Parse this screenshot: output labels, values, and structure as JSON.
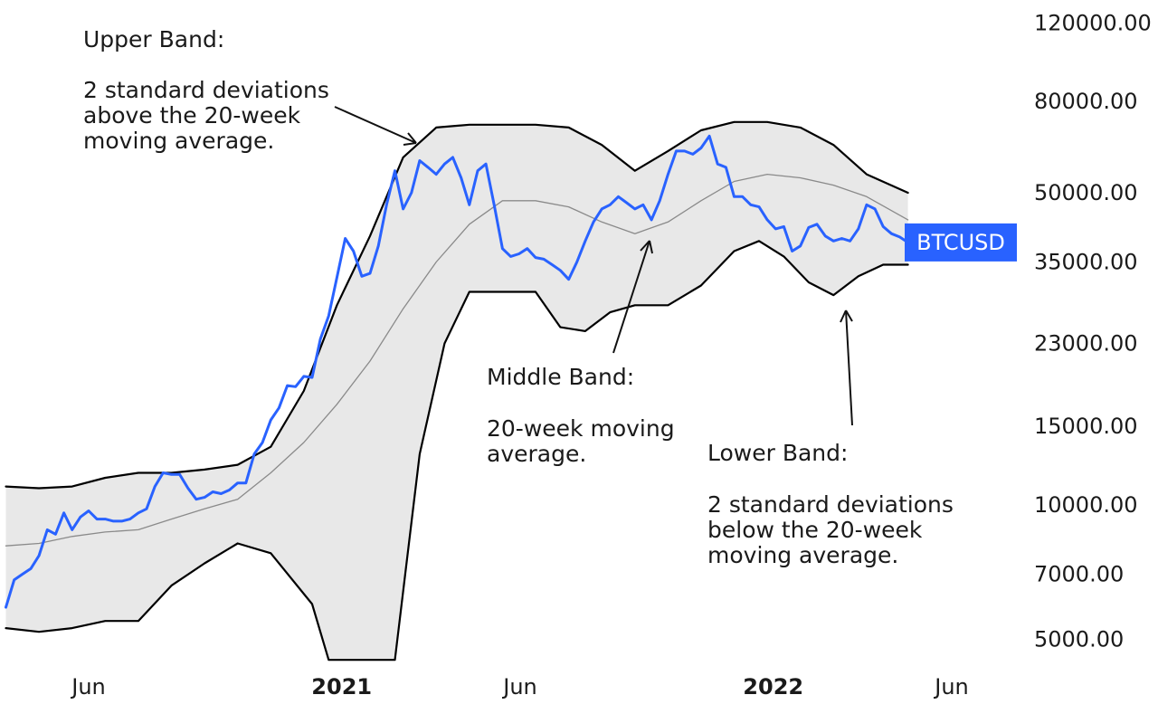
{
  "chart_data": {
    "type": "line",
    "y_scale": "log",
    "ylim": [
      4800,
      125000
    ],
    "x_ticks": [
      {
        "label": "Jun",
        "x": "2020-06-01",
        "major": false
      },
      {
        "label": "2021",
        "x": "2021-01-01",
        "major": true
      },
      {
        "label": "Jun",
        "x": "2021-06-01",
        "major": false
      },
      {
        "label": "2022",
        "x": "2022-01-01",
        "major": true
      },
      {
        "label": "Jun",
        "x": "2022-06-01",
        "major": false
      }
    ],
    "y_ticks": [
      {
        "label": "120000.00",
        "value": 120000
      },
      {
        "label": "80000.00",
        "value": 80000
      },
      {
        "label": "50000.00",
        "value": 50000
      },
      {
        "label": "35000.00",
        "value": 35000
      },
      {
        "label": "23000.00",
        "value": 23000
      },
      {
        "label": "15000.00",
        "value": 15000
      },
      {
        "label": "10000.00",
        "value": 10000
      },
      {
        "label": "7000.00",
        "value": 7000
      },
      {
        "label": "5000.00",
        "value": 5000
      }
    ],
    "series": [
      {
        "name": "BTCUSD",
        "color": "#2962ff",
        "x": [
          "2020-03-23",
          "2020-03-30",
          "2020-04-06",
          "2020-04-13",
          "2020-04-20",
          "2020-04-27",
          "2020-05-04",
          "2020-05-11",
          "2020-05-18",
          "2020-05-25",
          "2020-06-01",
          "2020-06-08",
          "2020-06-15",
          "2020-06-22",
          "2020-06-29",
          "2020-07-06",
          "2020-07-13",
          "2020-07-20",
          "2020-07-27",
          "2020-08-03",
          "2020-08-10",
          "2020-08-17",
          "2020-08-24",
          "2020-08-31",
          "2020-09-07",
          "2020-09-14",
          "2020-09-21",
          "2020-09-28",
          "2020-10-05",
          "2020-10-12",
          "2020-10-19",
          "2020-10-26",
          "2020-11-02",
          "2020-11-09",
          "2020-11-16",
          "2020-11-23",
          "2020-11-30",
          "2020-12-07",
          "2020-12-14",
          "2020-12-21",
          "2020-12-28",
          "2021-01-04",
          "2021-01-11",
          "2021-01-18",
          "2021-01-25",
          "2021-02-01",
          "2021-02-08",
          "2021-02-15",
          "2021-02-22",
          "2021-03-01",
          "2021-03-08",
          "2021-03-15",
          "2021-03-22",
          "2021-03-29",
          "2021-04-05",
          "2021-04-12",
          "2021-04-19",
          "2021-04-26",
          "2021-05-03",
          "2021-05-10",
          "2021-05-17",
          "2021-05-24",
          "2021-05-31",
          "2021-06-07",
          "2021-06-14",
          "2021-06-21",
          "2021-06-28",
          "2021-07-05",
          "2021-07-12",
          "2021-07-19",
          "2021-07-26",
          "2021-08-02",
          "2021-08-09",
          "2021-08-16",
          "2021-08-23",
          "2021-08-30",
          "2021-09-06",
          "2021-09-13",
          "2021-09-20",
          "2021-09-27",
          "2021-10-04",
          "2021-10-11",
          "2021-10-18",
          "2021-10-25",
          "2021-11-01",
          "2021-11-08",
          "2021-11-15",
          "2021-11-22",
          "2021-11-29",
          "2021-12-06",
          "2021-12-13",
          "2021-12-20",
          "2021-12-27",
          "2022-01-03",
          "2022-01-10",
          "2022-01-17",
          "2022-01-24",
          "2022-01-31",
          "2022-02-07",
          "2022-02-14",
          "2022-02-21",
          "2022-02-28",
          "2022-03-07",
          "2022-03-14",
          "2022-03-21",
          "2022-03-28",
          "2022-04-04",
          "2022-04-11",
          "2022-04-18",
          "2022-04-25"
        ],
        "values": [
          5900,
          6800,
          7000,
          7200,
          7700,
          8800,
          8600,
          9600,
          8800,
          9400,
          9700,
          9300,
          9300,
          9200,
          9200,
          9300,
          9600,
          9800,
          11000,
          11800,
          11700,
          11700,
          10900,
          10300,
          10400,
          10700,
          10600,
          10800,
          11200,
          11200,
          13000,
          13800,
          15500,
          16500,
          18500,
          18400,
          19400,
          19300,
          23500,
          26500,
          32300,
          39500,
          37000,
          32500,
          33000,
          38000,
          47000,
          56000,
          46000,
          50000,
          59000,
          57000,
          55000,
          58000,
          60000,
          54000,
          47000,
          56000,
          58000,
          47000,
          37500,
          36000,
          36500,
          37500,
          35800,
          35500,
          34500,
          33500,
          32000,
          35000,
          39000,
          43000,
          46000,
          47000,
          49000,
          47500,
          46000,
          47000,
          43500,
          48000,
          55000,
          62000,
          62000,
          61000,
          63000,
          67000,
          58000,
          57000,
          49000,
          49000,
          47000,
          46500,
          43500,
          41500,
          42000,
          37000,
          38000,
          41800,
          42500,
          40000,
          39000,
          39500,
          39000,
          41500,
          47000,
          46000,
          42000,
          40500,
          39800,
          38700
        ]
      },
      {
        "name": "Upper Band",
        "color": "#000000",
        "x": [
          "2020-03-23",
          "2020-04-20",
          "2020-05-18",
          "2020-06-15",
          "2020-07-13",
          "2020-08-10",
          "2020-09-07",
          "2020-10-05",
          "2020-11-02",
          "2020-11-30",
          "2020-12-28",
          "2021-01-25",
          "2021-02-22",
          "2021-03-22",
          "2021-04-19",
          "2021-05-17",
          "2021-06-14",
          "2021-07-12",
          "2021-08-09",
          "2021-09-06",
          "2021-10-04",
          "2021-11-01",
          "2021-11-29",
          "2021-12-27",
          "2022-01-24",
          "2022-02-21",
          "2022-03-21",
          "2022-04-25"
        ],
        "values": [
          11000,
          10900,
          11000,
          11500,
          11800,
          11800,
          12000,
          12300,
          13500,
          18000,
          28000,
          40000,
          60000,
          70000,
          71000,
          71000,
          71000,
          70000,
          64000,
          56000,
          62000,
          69000,
          72000,
          72000,
          70000,
          64000,
          55000,
          50000
        ]
      },
      {
        "name": "Middle Band",
        "color": "#8a8a8a",
        "x": [
          "2020-03-23",
          "2020-04-20",
          "2020-05-18",
          "2020-06-15",
          "2020-07-13",
          "2020-08-10",
          "2020-09-07",
          "2020-10-05",
          "2020-11-02",
          "2020-11-30",
          "2020-12-28",
          "2021-01-25",
          "2021-02-22",
          "2021-03-22",
          "2021-04-19",
          "2021-05-17",
          "2021-06-14",
          "2021-07-12",
          "2021-08-09",
          "2021-09-06",
          "2021-10-04",
          "2021-11-01",
          "2021-11-29",
          "2021-12-27",
          "2022-01-24",
          "2022-02-21",
          "2022-03-21",
          "2022-04-25"
        ],
        "values": [
          8100,
          8200,
          8500,
          8700,
          8800,
          9300,
          9800,
          10300,
          11800,
          13800,
          16800,
          21000,
          27500,
          35000,
          42500,
          48000,
          48000,
          46500,
          43000,
          40500,
          43000,
          48000,
          53000,
          55000,
          54000,
          52000,
          49000,
          43500
        ]
      },
      {
        "name": "Lower Band",
        "color": "#000000",
        "x": [
          "2020-03-23",
          "2020-04-20",
          "2020-05-18",
          "2020-06-15",
          "2020-07-13",
          "2020-08-10",
          "2020-09-07",
          "2020-10-05",
          "2020-11-02",
          "2020-12-07",
          "2020-12-21",
          "2021-02-15",
          "2021-03-08",
          "2021-03-29",
          "2021-04-19",
          "2021-05-17",
          "2021-06-14",
          "2021-07-05",
          "2021-07-26",
          "2021-08-16",
          "2021-09-06",
          "2021-10-04",
          "2021-11-01",
          "2021-11-29",
          "2021-12-20",
          "2022-01-10",
          "2022-01-31",
          "2022-02-21",
          "2022-03-14",
          "2022-04-04",
          "2022-04-25"
        ],
        "values": [
          5300,
          5200,
          5300,
          5500,
          5500,
          6600,
          7400,
          8200,
          7800,
          6000,
          4500,
          4500,
          13000,
          23000,
          30000,
          30000,
          30000,
          25000,
          24500,
          27000,
          28000,
          28000,
          31000,
          37000,
          39000,
          36000,
          31500,
          29500,
          32500,
          34500,
          34500
        ]
      }
    ],
    "badge": {
      "label": "BTCUSD",
      "value": 38700,
      "color": "#2962ff"
    },
    "annotations": [
      {
        "name": "upper-band",
        "title": "Upper Band:",
        "lines": [
          "2 standard deviations",
          "above the 20-week",
          "moving average."
        ]
      },
      {
        "name": "middle-band",
        "title": "Middle Band:",
        "lines": [
          "20-week moving",
          "average."
        ]
      },
      {
        "name": "lower-band",
        "title": "Lower Band:",
        "lines": [
          "2 standard deviations",
          "below the 20-week",
          "moving average."
        ]
      }
    ],
    "band_fill_color": "#e8e8e8",
    "grid": false,
    "legend": "none"
  }
}
